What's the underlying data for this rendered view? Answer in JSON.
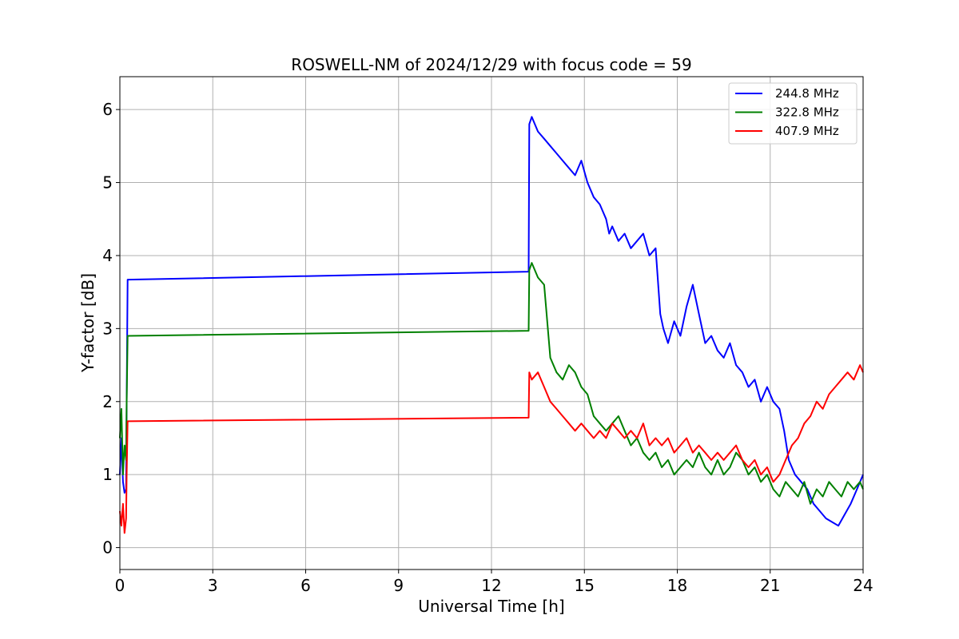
{
  "chart_data": {
    "type": "line",
    "title": "ROSWELL-NM of 2024/12/29 with focus code = 59",
    "xlabel": "Universal Time [h]",
    "ylabel": "Y-factor [dB]",
    "xlim": [
      0,
      24
    ],
    "ylim": [
      -0.3,
      6.45
    ],
    "xticks": [
      0,
      3,
      6,
      9,
      12,
      15,
      18,
      21,
      24
    ],
    "xtick_labels": [
      "0",
      "3",
      "6",
      "9",
      "12",
      "15",
      "18",
      "21",
      "24"
    ],
    "yticks": [
      0,
      1,
      2,
      3,
      4,
      5,
      6
    ],
    "ytick_labels": [
      "0",
      "1",
      "2",
      "3",
      "4",
      "5",
      "6"
    ],
    "grid": true,
    "legend_position": "top-right",
    "series": [
      {
        "name": "244.8 MHz",
        "color": "#0000ff",
        "x": [
          0,
          0.05,
          0.1,
          0.15,
          0.2,
          0.22,
          0.25,
          13.2,
          13.22,
          13.3,
          13.5,
          13.7,
          13.9,
          14.1,
          14.3,
          14.5,
          14.7,
          14.9,
          15.1,
          15.3,
          15.5,
          15.7,
          15.8,
          15.9,
          16.1,
          16.3,
          16.5,
          16.7,
          16.9,
          17.1,
          17.3,
          17.45,
          17.55,
          17.7,
          17.9,
          18.1,
          18.3,
          18.5,
          18.7,
          18.9,
          19.1,
          19.3,
          19.5,
          19.7,
          19.9,
          20.1,
          20.3,
          20.5,
          20.7,
          20.9,
          21.1,
          21.3,
          21.45,
          21.6,
          21.8,
          22.0,
          22.2,
          22.4,
          22.6,
          22.8,
          23.0,
          23.2,
          23.4,
          23.6,
          23.8,
          24.0
        ],
        "y": [
          1.0,
          1.5,
          0.9,
          0.75,
          0.8,
          2.0,
          3.67,
          3.78,
          5.8,
          5.9,
          5.7,
          5.6,
          5.5,
          5.4,
          5.3,
          5.2,
          5.1,
          5.3,
          5.0,
          4.8,
          4.7,
          4.5,
          4.3,
          4.4,
          4.2,
          4.3,
          4.1,
          4.2,
          4.3,
          4.0,
          4.1,
          3.2,
          3.0,
          2.8,
          3.1,
          2.9,
          3.3,
          3.6,
          3.2,
          2.8,
          2.9,
          2.7,
          2.6,
          2.8,
          2.5,
          2.4,
          2.2,
          2.3,
          2.0,
          2.2,
          2.0,
          1.9,
          1.6,
          1.2,
          1.0,
          0.9,
          0.8,
          0.6,
          0.5,
          0.4,
          0.35,
          0.3,
          0.45,
          0.6,
          0.8,
          1.0
        ]
      },
      {
        "name": "322.8 MHz",
        "color": "#008000",
        "x": [
          0,
          0.05,
          0.1,
          0.15,
          0.2,
          0.22,
          0.25,
          13.2,
          13.22,
          13.3,
          13.5,
          13.7,
          13.9,
          14.1,
          14.3,
          14.5,
          14.7,
          14.9,
          15.1,
          15.3,
          15.5,
          15.7,
          15.9,
          16.1,
          16.3,
          16.5,
          16.7,
          16.9,
          17.1,
          17.3,
          17.5,
          17.7,
          17.9,
          18.1,
          18.3,
          18.5,
          18.7,
          18.9,
          19.1,
          19.3,
          19.5,
          19.7,
          19.9,
          20.1,
          20.3,
          20.5,
          20.7,
          20.9,
          21.1,
          21.3,
          21.5,
          21.7,
          21.9,
          22.1,
          22.3,
          22.5,
          22.7,
          22.9,
          23.1,
          23.3,
          23.5,
          23.7,
          23.9,
          24.0
        ],
        "y": [
          1.5,
          1.9,
          1.0,
          1.4,
          1.2,
          2.0,
          2.9,
          2.97,
          3.8,
          3.9,
          3.7,
          3.6,
          2.6,
          2.4,
          2.3,
          2.5,
          2.4,
          2.2,
          2.1,
          1.8,
          1.7,
          1.6,
          1.7,
          1.8,
          1.6,
          1.4,
          1.5,
          1.3,
          1.2,
          1.3,
          1.1,
          1.2,
          1.0,
          1.1,
          1.2,
          1.1,
          1.3,
          1.1,
          1.0,
          1.2,
          1.0,
          1.1,
          1.3,
          1.2,
          1.0,
          1.1,
          0.9,
          1.0,
          0.8,
          0.7,
          0.9,
          0.8,
          0.7,
          0.9,
          0.6,
          0.8,
          0.7,
          0.9,
          0.8,
          0.7,
          0.9,
          0.8,
          0.9,
          0.8
        ]
      },
      {
        "name": "407.9 MHz",
        "color": "#ff0000",
        "x": [
          0,
          0.05,
          0.1,
          0.15,
          0.2,
          0.22,
          0.25,
          13.2,
          13.22,
          13.3,
          13.5,
          13.7,
          13.9,
          14.1,
          14.3,
          14.5,
          14.7,
          14.9,
          15.1,
          15.3,
          15.5,
          15.7,
          15.9,
          16.1,
          16.3,
          16.5,
          16.7,
          16.9,
          17.1,
          17.3,
          17.5,
          17.7,
          17.9,
          18.1,
          18.3,
          18.5,
          18.7,
          18.9,
          19.1,
          19.3,
          19.5,
          19.7,
          19.9,
          20.1,
          20.3,
          20.5,
          20.7,
          20.9,
          21.1,
          21.3,
          21.5,
          21.7,
          21.9,
          22.1,
          22.3,
          22.5,
          22.7,
          22.9,
          23.1,
          23.3,
          23.5,
          23.7,
          23.9,
          24.0
        ],
        "y": [
          0.5,
          0.3,
          0.6,
          0.2,
          0.4,
          1.0,
          1.73,
          1.78,
          2.4,
          2.3,
          2.4,
          2.2,
          2.0,
          1.9,
          1.8,
          1.7,
          1.6,
          1.7,
          1.6,
          1.5,
          1.6,
          1.5,
          1.7,
          1.6,
          1.5,
          1.6,
          1.5,
          1.7,
          1.4,
          1.5,
          1.4,
          1.5,
          1.3,
          1.4,
          1.5,
          1.3,
          1.4,
          1.3,
          1.2,
          1.3,
          1.2,
          1.3,
          1.4,
          1.2,
          1.1,
          1.2,
          1.0,
          1.1,
          0.9,
          1.0,
          1.2,
          1.4,
          1.5,
          1.7,
          1.8,
          2.0,
          1.9,
          2.1,
          2.2,
          2.3,
          2.4,
          2.3,
          2.5,
          2.4
        ]
      }
    ]
  }
}
